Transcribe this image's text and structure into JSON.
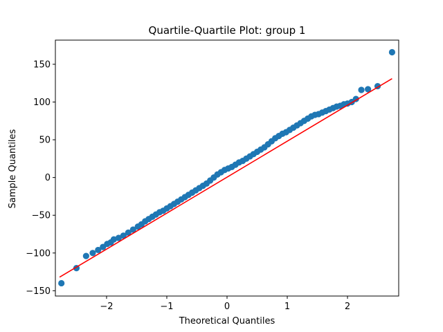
{
  "chart_data": {
    "type": "scatter",
    "title": "Quartile-Quartile Plot: group 1",
    "xlabel": "Theoretical Quantiles",
    "ylabel": "Sample Quantiles",
    "xlim": [
      -2.85,
      2.85
    ],
    "ylim": [
      -157,
      182
    ],
    "xticks": [
      -2,
      -1,
      0,
      1,
      2
    ],
    "xtick_labels": [
      "−2",
      "−1",
      "0",
      "1",
      "2"
    ],
    "yticks": [
      -150,
      -100,
      -50,
      0,
      50,
      100,
      150
    ],
    "ytick_labels": [
      "−150",
      "−100",
      "−50",
      "0",
      "50",
      "100",
      "150"
    ],
    "grid": false,
    "legend": "none",
    "colors": {
      "points": "#1f77b4",
      "reference_line": "#ff0000",
      "axes": "#000000"
    },
    "series": [
      {
        "kind": "points",
        "x": [
          -2.75,
          -2.5,
          -2.34,
          -2.23,
          -2.14,
          -2.06,
          -1.99,
          -1.93,
          -1.88,
          -1.8,
          -1.72,
          -1.64,
          -1.56,
          -1.48,
          -1.42,
          -1.36,
          -1.3,
          -1.24,
          -1.18,
          -1.12,
          -1.06,
          -1.0,
          -0.94,
          -0.88,
          -0.82,
          -0.76,
          -0.7,
          -0.64,
          -0.58,
          -0.52,
          -0.46,
          -0.4,
          -0.34,
          -0.28,
          -0.22,
          -0.16,
          -0.1,
          -0.04,
          0.02,
          0.08,
          0.14,
          0.2,
          0.26,
          0.32,
          0.38,
          0.44,
          0.5,
          0.56,
          0.62,
          0.68,
          0.74,
          0.8,
          0.86,
          0.92,
          0.98,
          1.04,
          1.1,
          1.16,
          1.22,
          1.28,
          1.34,
          1.4,
          1.46,
          1.52,
          1.58,
          1.64,
          1.7,
          1.76,
          1.82,
          1.88,
          1.94,
          2.0,
          2.07,
          2.14,
          2.23,
          2.34,
          2.5,
          2.74
        ],
        "y": [
          -140,
          -120,
          -104,
          -100,
          -96,
          -92,
          -88,
          -86,
          -82,
          -80,
          -77,
          -73,
          -69,
          -65,
          -62,
          -58,
          -55,
          -52,
          -49,
          -46,
          -44,
          -41,
          -38,
          -35,
          -32,
          -29,
          -26,
          -23,
          -20,
          -17,
          -14,
          -11,
          -8,
          -4,
          0,
          4,
          7,
          10,
          12,
          14,
          17,
          20,
          22,
          25,
          28,
          31,
          34,
          37,
          40,
          44,
          48,
          52,
          55,
          58,
          60,
          63,
          66,
          69,
          72,
          75,
          78,
          81,
          83,
          84,
          86,
          88,
          90,
          92,
          94,
          95,
          97,
          98,
          100,
          104,
          116,
          117,
          121,
          166
        ]
      },
      {
        "kind": "line",
        "x": [
          -2.78,
          2.74
        ],
        "y": [
          -132,
          131
        ]
      }
    ]
  }
}
